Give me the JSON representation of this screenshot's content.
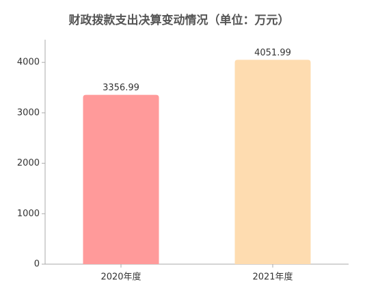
{
  "chart_data": {
    "type": "bar",
    "title": "财政拨款支出决算变动情况（单位：万元）",
    "categories": [
      "2020年度",
      "2021年度"
    ],
    "values": [
      3356.99,
      4051.99
    ],
    "colors": [
      "#ff9a9a",
      "#fedcb0"
    ],
    "ylim": [
      0,
      4450
    ],
    "yticks": [
      0,
      1000,
      2000,
      3000,
      4000
    ],
    "grid": false
  }
}
